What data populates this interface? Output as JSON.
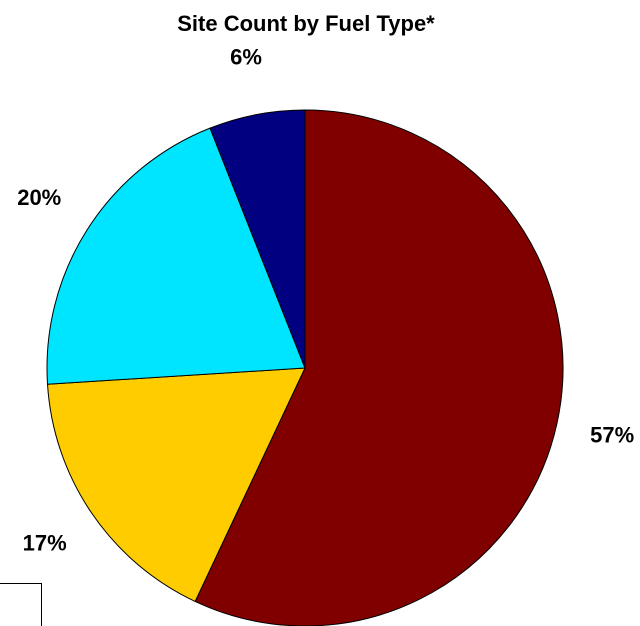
{
  "chart_data": {
    "type": "pie",
    "title": "Site Count by Fuel Type*",
    "values": [
      57,
      17,
      20,
      6
    ],
    "value_labels": [
      "57%",
      "17%",
      "20%",
      "6%"
    ],
    "colors": [
      "#800000",
      "#ffcc00",
      "#00e5ff",
      "#000080"
    ]
  }
}
